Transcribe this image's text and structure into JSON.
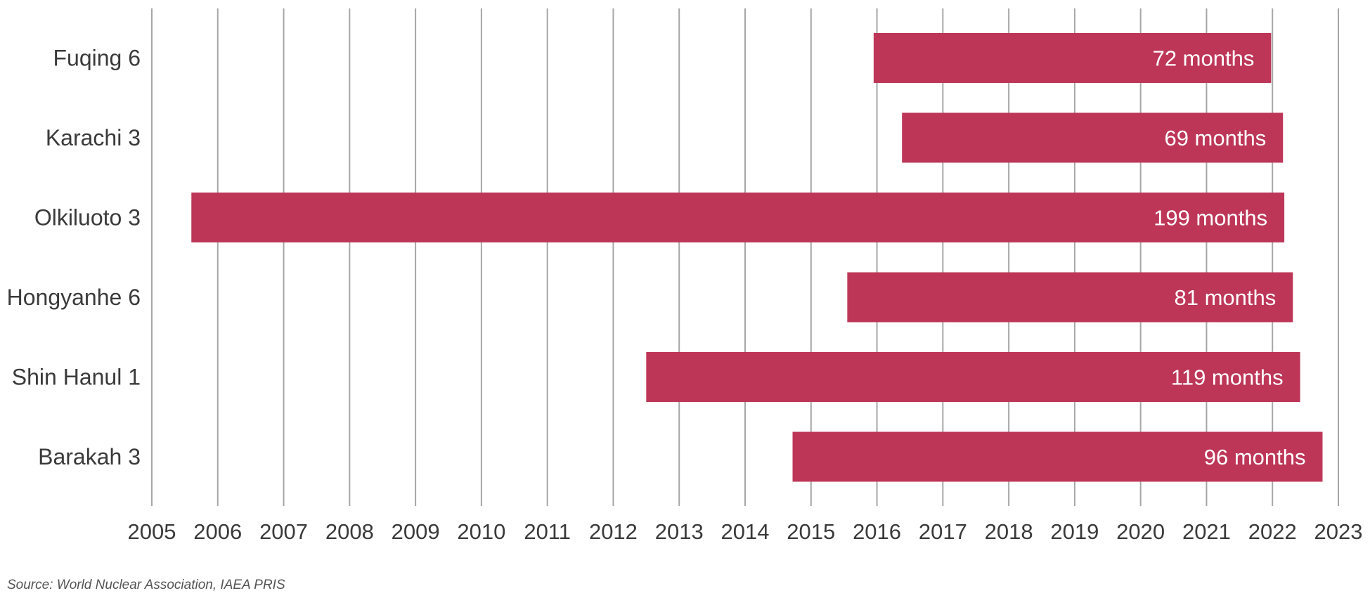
{
  "chart_data": {
    "type": "bar",
    "orientation": "horizontal",
    "categories": [
      "Fuqing 6",
      "Karachi 3",
      "Olkiluoto 3",
      "Hongyanhe 6",
      "Shin Hanul 1",
      "Barakah 3"
    ],
    "series": [
      {
        "start": [
          2015.95,
          2016.38,
          2005.6,
          2015.55,
          2012.5,
          2014.72
        ],
        "end": [
          2021.98,
          2022.16,
          2022.18,
          2022.31,
          2022.42,
          2022.76
        ],
        "labels": [
          "72 months",
          "69 months",
          "199 months",
          "81 months",
          "119 months",
          "96 months"
        ]
      }
    ],
    "x_ticks": [
      "2005",
      "2006",
      "2007",
      "2008",
      "2009",
      "2010",
      "2011",
      "2012",
      "2013",
      "2014",
      "2015",
      "2016",
      "2017",
      "2018",
      "2019",
      "2020",
      "2021",
      "2022",
      "2023"
    ],
    "xlim": [
      2005,
      2023
    ],
    "grid": true,
    "bar_color": "#bd3658",
    "grid_color": "#a6a6a6"
  },
  "source_note": "Source: World Nuclear Association, IAEA PRIS"
}
